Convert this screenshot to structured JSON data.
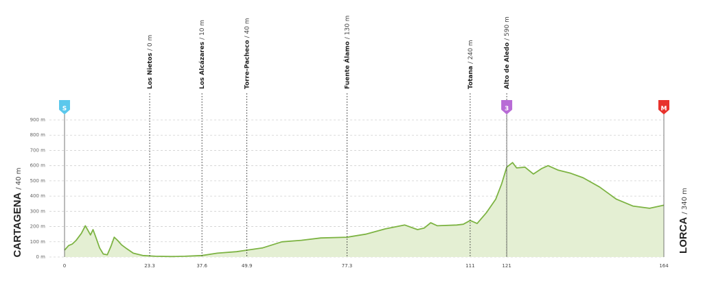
{
  "chart_data": {
    "type": "area",
    "x": [
      0,
      1.1,
      2.1,
      3.2,
      4.6,
      5.7,
      6.4,
      7.1,
      7.8,
      8.5,
      9.6,
      10.6,
      11.7,
      12.7,
      13.6,
      14.5,
      15.6,
      17.0,
      18.8,
      21.4,
      24.9,
      29.4,
      32.9,
      37.6,
      41.8,
      47.1,
      49.9,
      54.2,
      59.5,
      64.8,
      70.1,
      77.3,
      82.4,
      87.8,
      93.1,
      96.6,
      98.4,
      100.2,
      102.0,
      107.3,
      109.1,
      111,
      112.9,
      115.4,
      118.0,
      119.6,
      121,
      122.6,
      123.7,
      126.0,
      128.3,
      130.5,
      132.3,
      135.1,
      138.5,
      141.9,
      146.4,
      151.0,
      155.5,
      160.1,
      164
    ],
    "values": [
      45,
      75,
      85,
      110,
      155,
      205,
      175,
      145,
      180,
      135,
      60,
      20,
      15,
      70,
      130,
      110,
      80,
      55,
      25,
      10,
      5,
      3,
      5,
      10,
      25,
      35,
      45,
      60,
      100,
      110,
      125,
      130,
      150,
      185,
      210,
      180,
      190,
      225,
      205,
      210,
      215,
      240,
      220,
      290,
      380,
      480,
      590,
      620,
      585,
      590,
      545,
      580,
      600,
      570,
      550,
      520,
      460,
      380,
      335,
      320,
      340
    ],
    "line_color": "#7cb342",
    "fill_color": "#e4efd3",
    "xlim": [
      0,
      164
    ],
    "xticks": [
      0,
      23.3,
      37.6,
      49.9,
      77.3,
      111,
      121,
      164
    ],
    "ylim": [
      0,
      900
    ],
    "yticks": [
      {
        "value": 0,
        "label": "0 m"
      },
      {
        "value": 100,
        "label": "100 m"
      },
      {
        "value": 200,
        "label": "200 m"
      },
      {
        "value": 300,
        "label": "300 m"
      },
      {
        "value": 400,
        "label": "400 m"
      },
      {
        "value": 500,
        "label": "500 m"
      },
      {
        "value": 600,
        "label": "600 m"
      },
      {
        "value": 700,
        "label": "700 m"
      },
      {
        "value": 800,
        "label": "800 m"
      },
      {
        "value": 900,
        "label": "900 m"
      }
    ],
    "grid": true,
    "start": {
      "name": "CARTAGENA",
      "alt": "/ 40 m"
    },
    "finish": {
      "name": "LORCA",
      "alt": "/ 340 m"
    },
    "waypoints": [
      {
        "km": 23.3,
        "name": "Los Nietos",
        "alt": "/ 0 m"
      },
      {
        "km": 37.6,
        "name": "Los Alcázares",
        "alt": "/ 10 m"
      },
      {
        "km": 49.9,
        "name": "Torre-Pacheco",
        "alt": "/ 40 m"
      },
      {
        "km": 77.3,
        "name": "Fuente Álamo",
        "alt": "/ 130 m"
      },
      {
        "km": 111,
        "name": "Totana",
        "alt": "/ 240 m"
      },
      {
        "km": 121,
        "name": "Alto de Aledo",
        "alt": "/ 590 m"
      }
    ],
    "markers": [
      {
        "km": 0,
        "label": "S",
        "color": "#5bc8ec"
      },
      {
        "km": 121,
        "label": "3",
        "color": "#b86bd6"
      },
      {
        "km": 164,
        "label": "M",
        "color": "#e8322c"
      }
    ]
  }
}
